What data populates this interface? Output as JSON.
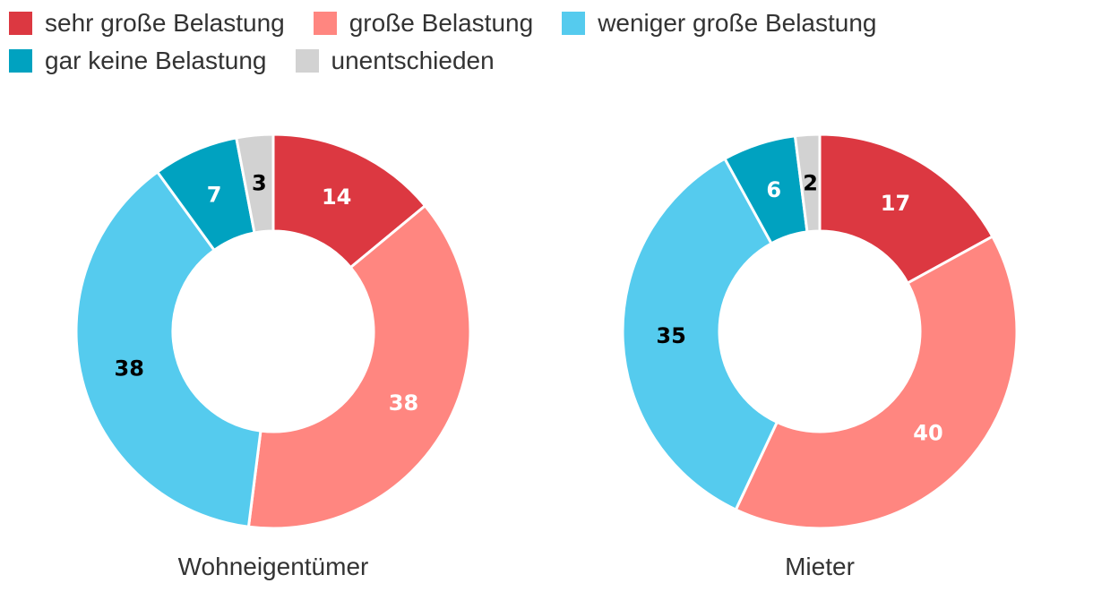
{
  "chart_data": [
    {
      "type": "pie",
      "title": "Wohneigentümer",
      "categories": [
        "sehr große Belastung",
        "große Belastung",
        "weniger große Belastung",
        "gar keine Belastung",
        "unentschieden"
      ],
      "values": [
        14,
        38,
        38,
        7,
        3
      ]
    },
    {
      "type": "pie",
      "title": "Mieter",
      "categories": [
        "sehr große Belastung",
        "große Belastung",
        "weniger große Belastung",
        "gar keine Belastung",
        "unentschieden"
      ],
      "values": [
        17,
        40,
        35,
        6,
        2
      ]
    }
  ],
  "legend": {
    "items": [
      {
        "label": "sehr große Belastung",
        "color": "#dc3841"
      },
      {
        "label": "große Belastung",
        "color": "#ff8680"
      },
      {
        "label": "weniger große Belastung",
        "color": "#55cbee"
      },
      {
        "label": "gar keine Belastung",
        "color": "#00a2c0"
      },
      {
        "label": "unentschieden",
        "color": "#d2d2d2"
      }
    ]
  },
  "label_colors": [
    "#ffffff",
    "#ffffff",
    "#000000",
    "#ffffff",
    "#000000"
  ]
}
